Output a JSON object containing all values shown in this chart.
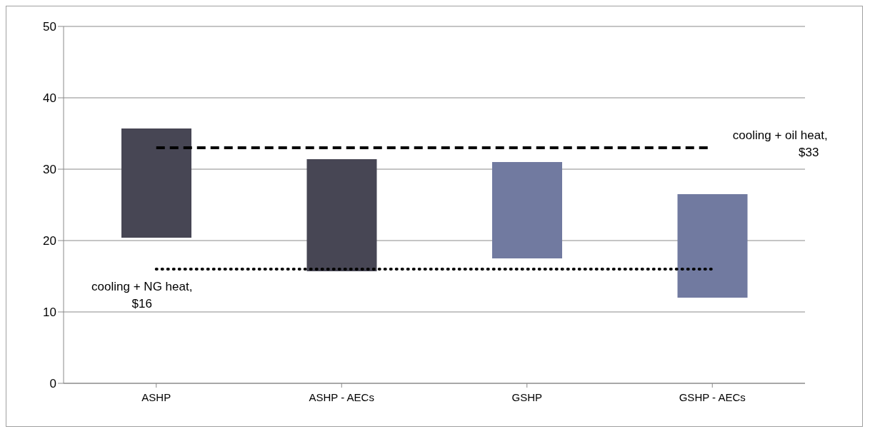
{
  "chart_data": {
    "type": "bar",
    "categories": [
      "ASHP",
      "ASHP - AECs",
      "GSHP",
      "GSHP - AECs"
    ],
    "base": [
      20.4,
      15.7,
      17.5,
      12.0
    ],
    "values": [
      15.3,
      15.7,
      13.5,
      14.5
    ],
    "colors": [
      "#474654",
      "#474654",
      "#717aa0",
      "#717aa0"
    ],
    "ylim": [
      0,
      50
    ],
    "yticks": [
      0,
      10,
      20,
      30,
      40,
      50
    ],
    "grid": "y",
    "ref_lines": [
      {
        "axis": "y",
        "value": 33,
        "label": "cooling + oil heat, $33",
        "line_style": "dashed",
        "color": "#000000"
      },
      {
        "axis": "y",
        "value": 16,
        "label": "cooling + NG heat, $16",
        "line_style": "dotted",
        "color": "#000000"
      }
    ]
  }
}
